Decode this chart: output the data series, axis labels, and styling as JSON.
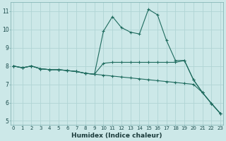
{
  "xlabel": "Humidex (Indice chaleur)",
  "x": [
    0,
    1,
    2,
    3,
    4,
    5,
    6,
    7,
    8,
    9,
    10,
    11,
    12,
    13,
    14,
    15,
    16,
    17,
    18,
    19,
    20,
    21,
    22,
    23
  ],
  "line1": [
    8.0,
    7.9,
    8.0,
    7.85,
    7.8,
    7.8,
    7.75,
    7.7,
    7.6,
    7.55,
    9.9,
    10.7,
    10.1,
    9.85,
    9.75,
    11.1,
    10.8,
    9.4,
    8.3,
    8.3,
    7.25,
    6.55,
    5.95,
    5.4
  ],
  "line2": [
    8.0,
    7.9,
    8.0,
    7.85,
    7.8,
    7.8,
    7.75,
    7.7,
    7.6,
    7.55,
    8.15,
    8.2,
    8.2,
    8.2,
    8.2,
    8.2,
    8.2,
    8.2,
    8.2,
    8.3,
    7.25,
    6.55,
    5.95,
    5.4
  ],
  "line3": [
    8.0,
    7.9,
    8.0,
    7.85,
    7.8,
    7.8,
    7.75,
    7.7,
    7.6,
    7.55,
    7.5,
    7.45,
    7.4,
    7.35,
    7.3,
    7.25,
    7.2,
    7.15,
    7.1,
    7.05,
    7.0,
    6.55,
    5.95,
    5.4
  ],
  "line_color": "#1e6b5e",
  "bg_color": "#cce8e8",
  "grid_color": "#b0d4d4",
  "ylim": [
    4.8,
    11.5
  ],
  "xlim": [
    -0.3,
    23.3
  ],
  "yticks": [
    5,
    6,
    7,
    8,
    9,
    10,
    11
  ],
  "xticks": [
    0,
    1,
    2,
    3,
    4,
    5,
    6,
    7,
    8,
    9,
    10,
    11,
    12,
    13,
    14,
    15,
    16,
    17,
    18,
    19,
    20,
    21,
    22,
    23
  ],
  "tick_fontsize": 5.0,
  "xlabel_fontsize": 6.5
}
